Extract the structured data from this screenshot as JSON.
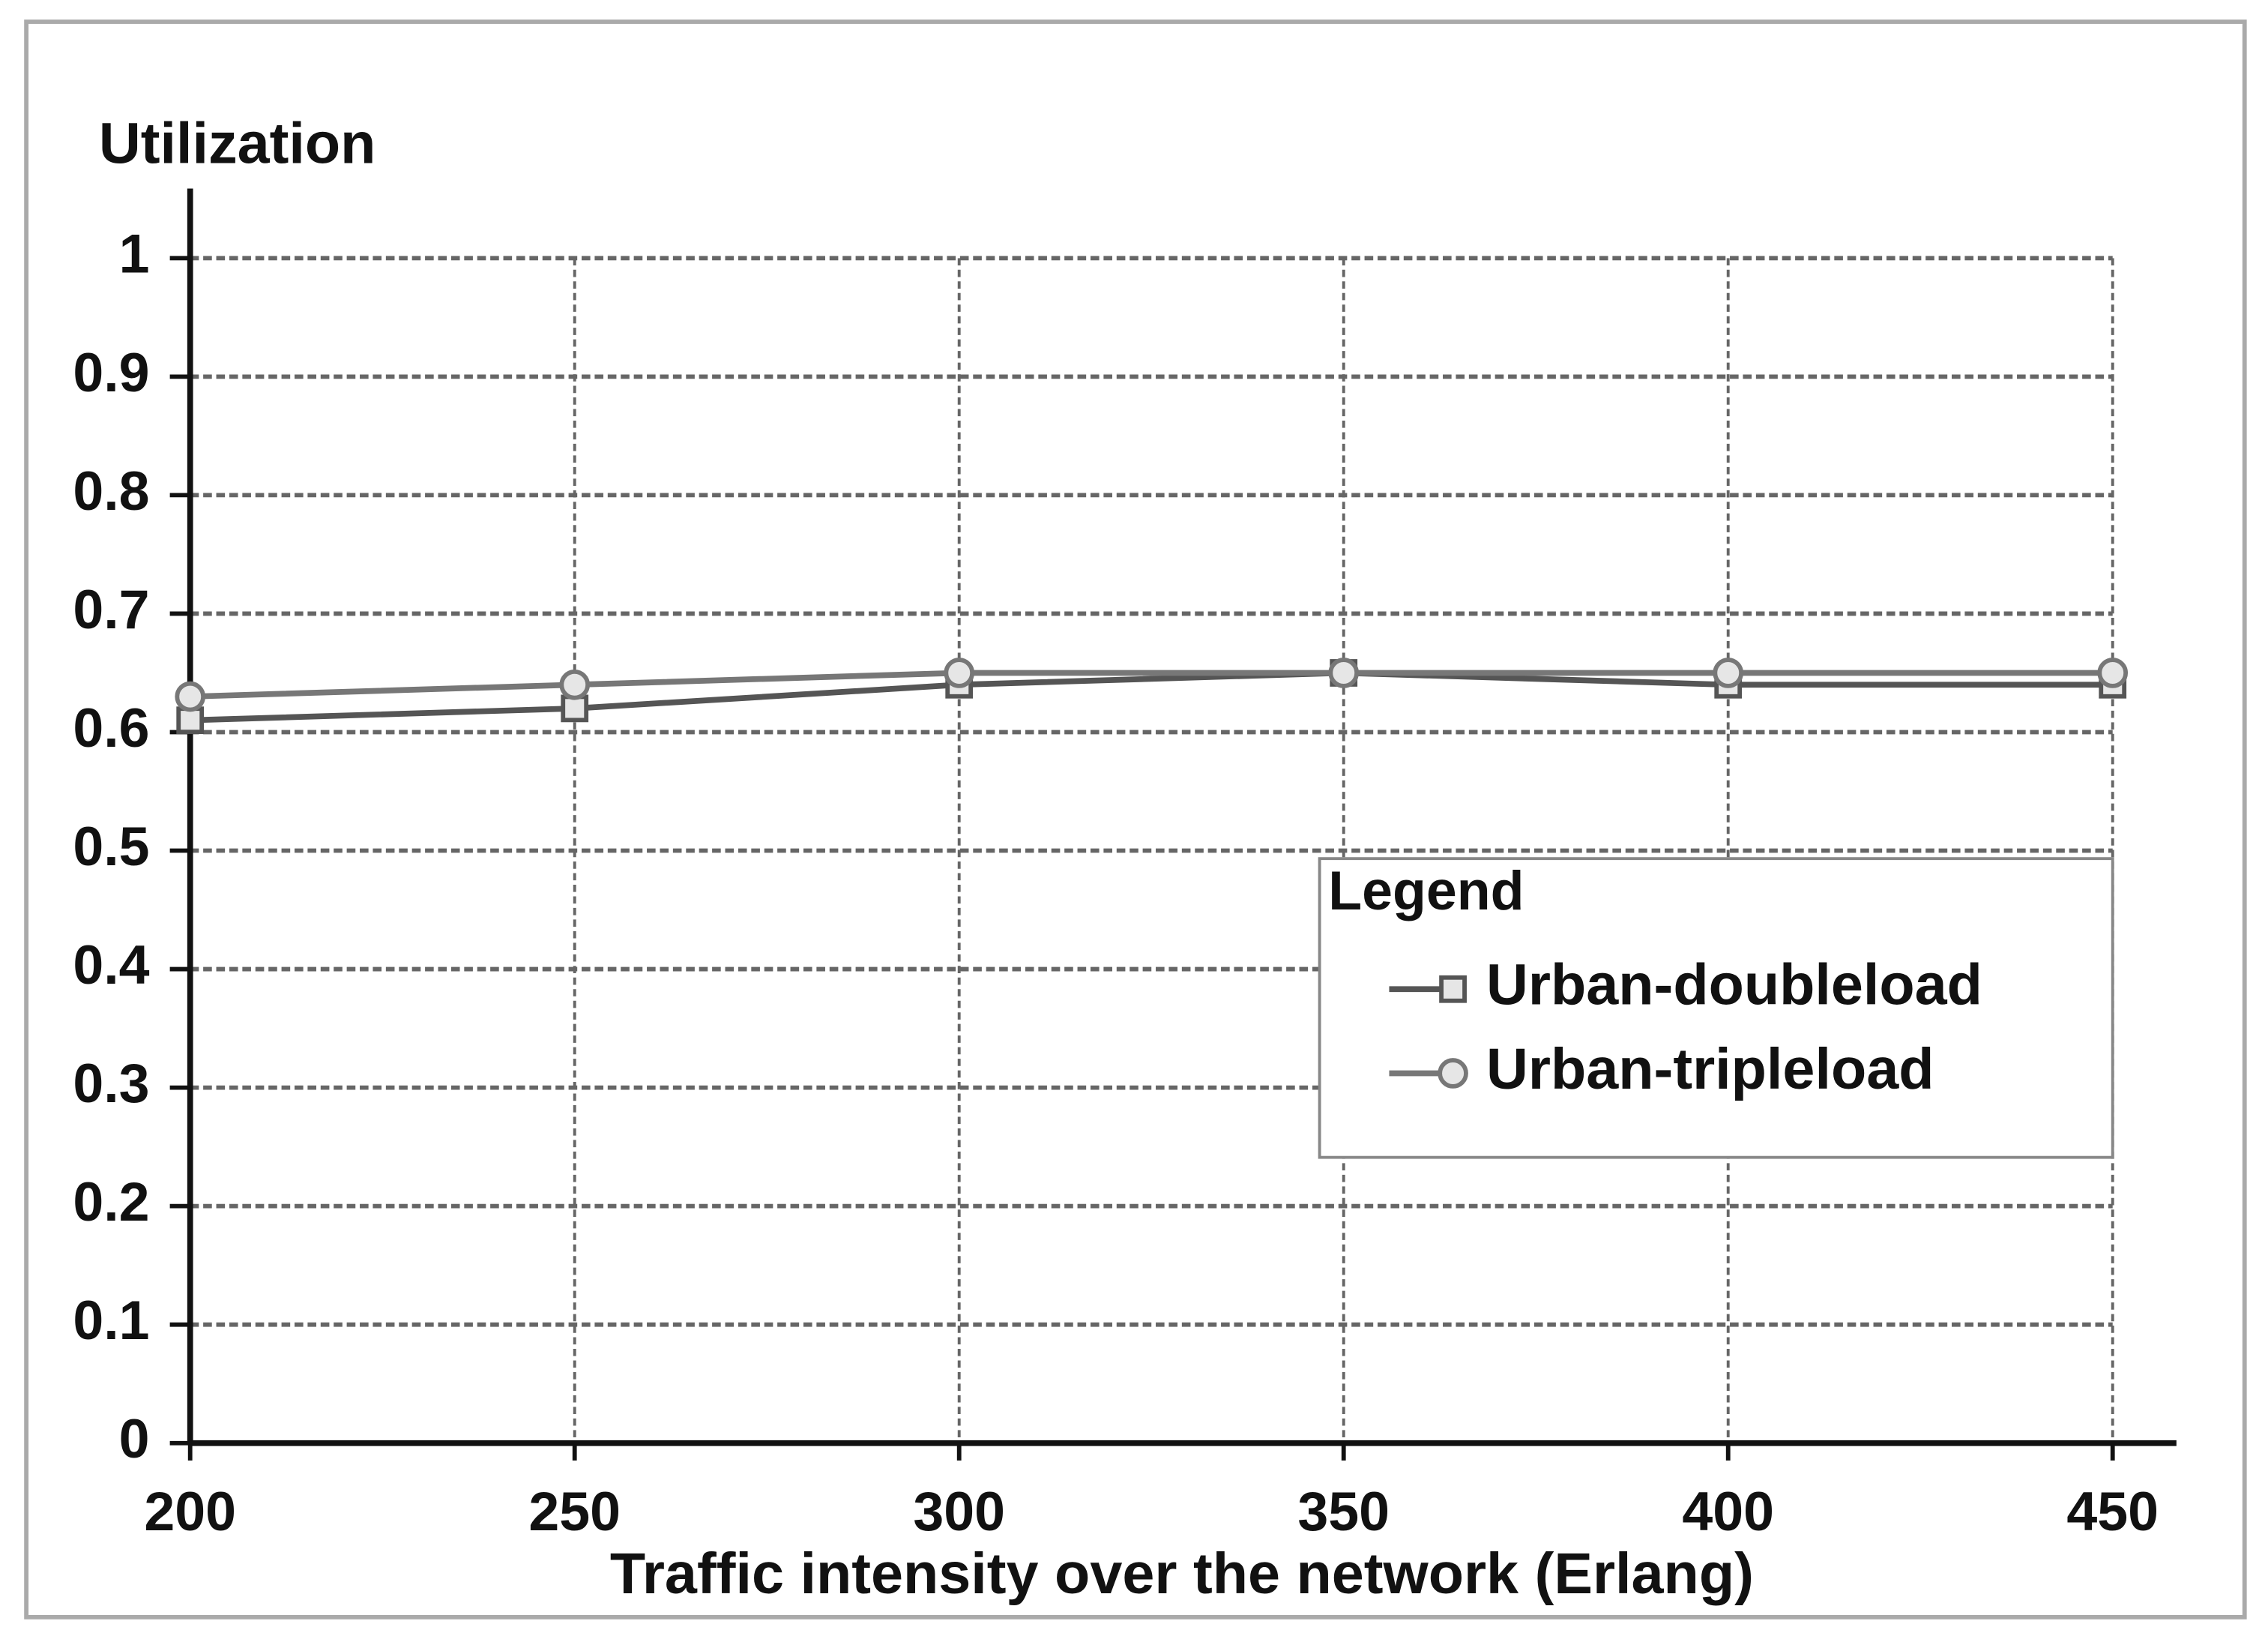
{
  "chart_data": {
    "type": "line",
    "y_label": "Utilization",
    "x_label": "Traffic intensity over the network (Erlang)",
    "legend_title": "Legend",
    "x": [
      200,
      250,
      300,
      350,
      400,
      450
    ],
    "series": [
      {
        "name": "Urban-doubleload",
        "color": "#555555",
        "marker": "square",
        "values": [
          0.61,
          0.62,
          0.64,
          0.65,
          0.64,
          0.64
        ]
      },
      {
        "name": "Urban-tripleload",
        "color": "#777777",
        "marker": "circle",
        "values": [
          0.63,
          0.64,
          0.65,
          0.65,
          0.65,
          0.65
        ]
      }
    ],
    "xlim": [
      200,
      450
    ],
    "xticks": [
      200,
      250,
      300,
      350,
      400,
      450
    ],
    "ylim": [
      0,
      1
    ],
    "yticks": [
      0,
      0.1,
      0.2,
      0.3,
      0.4,
      0.5,
      0.6,
      0.7,
      0.8,
      0.9,
      1
    ],
    "grid": true,
    "legend_position": "right"
  }
}
